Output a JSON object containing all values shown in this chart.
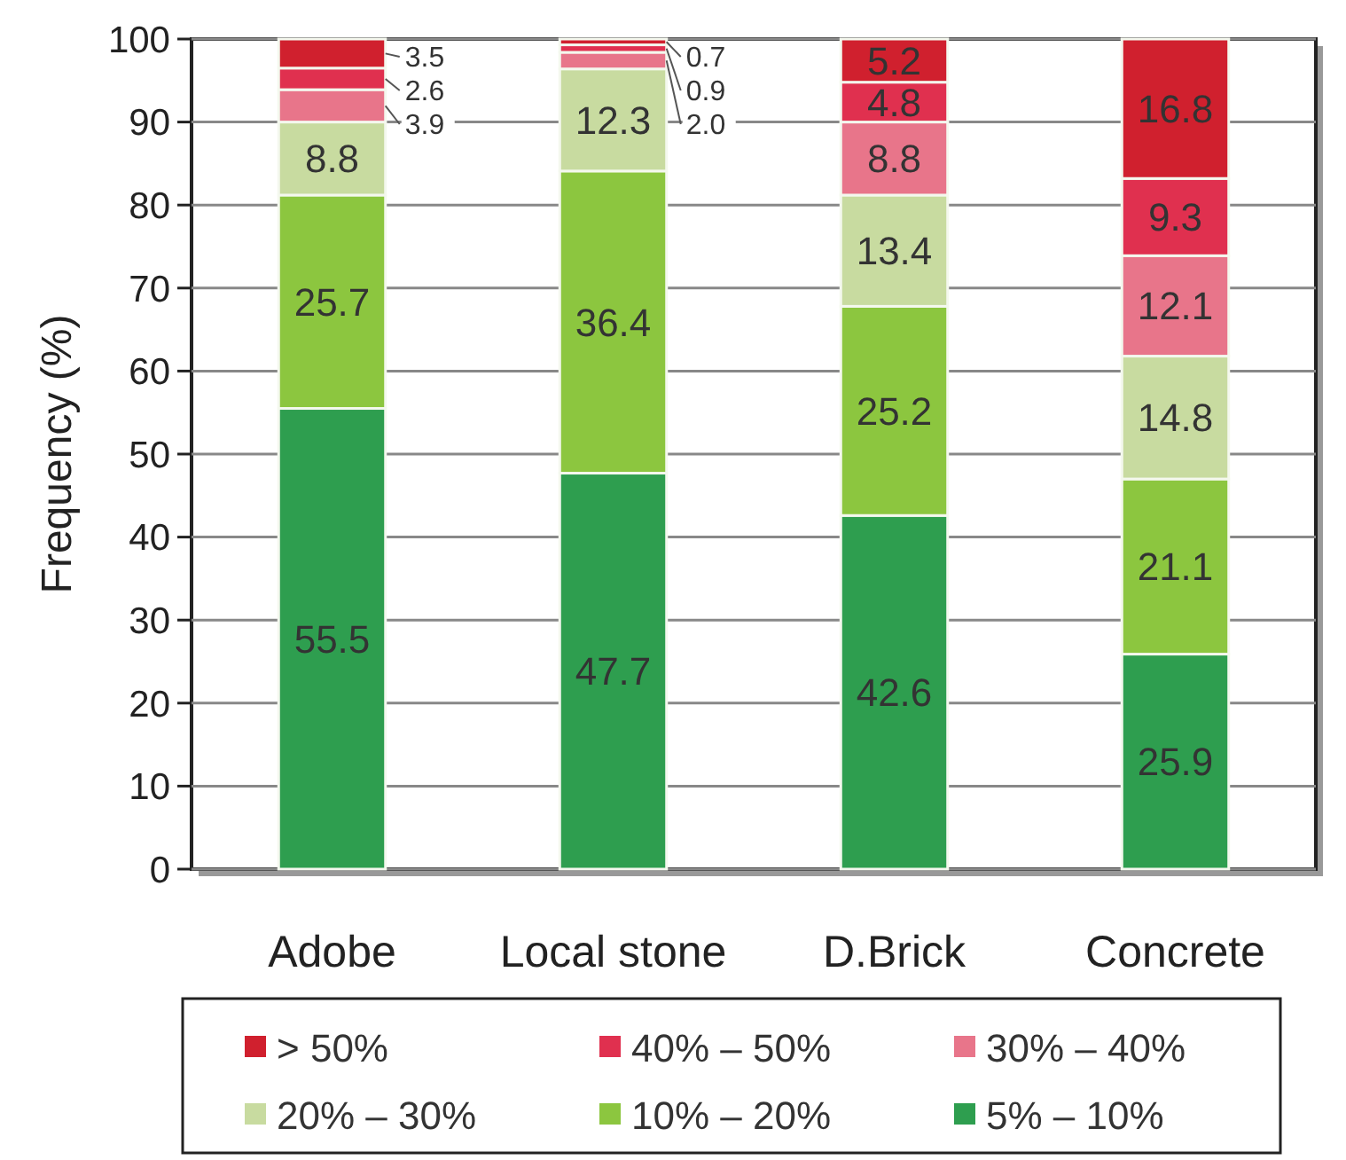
{
  "chart_data": {
    "type": "bar",
    "stacked": true,
    "ylabel": "Frequency (%)",
    "categories": [
      "Adobe",
      "Local stone",
      "D.Brick",
      "Concrete"
    ],
    "series": [
      {
        "name": "5% – 10%",
        "color": "#2e9e4f",
        "values": [
          55.5,
          47.7,
          42.6,
          25.9
        ]
      },
      {
        "name": "10% – 20%",
        "color": "#8cc63f",
        "values": [
          25.7,
          36.4,
          25.2,
          21.1
        ]
      },
      {
        "name": "20% – 30%",
        "color": "#c8dba0",
        "values": [
          8.8,
          12.3,
          13.4,
          14.8
        ]
      },
      {
        "name": "30% – 40%",
        "color": "#e8758a",
        "values": [
          3.9,
          2.0,
          8.8,
          12.1
        ],
        "value_labels": [
          "3.9",
          "2.0",
          "8.8",
          "12.1"
        ]
      },
      {
        "name": "40% – 50%",
        "color": "#e0304f",
        "values": [
          2.6,
          0.9,
          4.8,
          9.3
        ]
      },
      {
        "name": "> 50%",
        "color": "#d0202e",
        "values": [
          3.5,
          0.7,
          5.2,
          16.8
        ]
      }
    ],
    "ylim": [
      0,
      100
    ],
    "yticks": [
      0,
      10,
      20,
      30,
      40,
      50,
      60,
      70,
      80,
      90,
      100
    ],
    "grid": "y",
    "data_labels": true,
    "legend": "bottom"
  }
}
